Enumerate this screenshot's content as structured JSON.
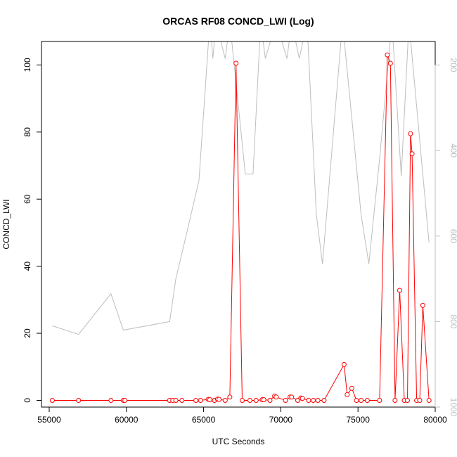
{
  "chart_data": {
    "type": "line",
    "title": "ORCAS RF08 CONCD_LWI (Log)",
    "xlabel": "UTC Seconds",
    "ylabel": "CONCD_LWI",
    "xlim": [
      54500,
      80000
    ],
    "ylim": [
      -2,
      107
    ],
    "y2lim": [
      1000,
      145
    ],
    "xticks": [
      "55000",
      "60000",
      "65000",
      "70000",
      "75000",
      "80000"
    ],
    "yticks": [
      "0",
      "20",
      "40",
      "60",
      "80",
      "100"
    ],
    "y2ticks": [
      "200",
      "400",
      "600",
      "800",
      "1000"
    ],
    "colors": {
      "primary": "#ff0000",
      "secondary": "#bebebe",
      "axis": "#000000"
    },
    "series": [
      {
        "values": [
          [
            55200,
            0
          ],
          [
            56900,
            0
          ],
          [
            59000,
            0
          ],
          [
            59800,
            0
          ],
          [
            59900,
            0
          ],
          [
            62800,
            0
          ],
          [
            63000,
            0
          ],
          [
            63200,
            0
          ],
          [
            63600,
            0
          ],
          [
            64500,
            0
          ],
          [
            64800,
            0
          ],
          [
            65300,
            0.3
          ],
          [
            65400,
            0.2
          ],
          [
            65700,
            0
          ],
          [
            65900,
            0.4
          ],
          [
            66000,
            0.3
          ],
          [
            66400,
            0
          ],
          [
            66700,
            1
          ],
          [
            67100,
            100.5
          ],
          [
            67500,
            0
          ],
          [
            68000,
            0
          ],
          [
            68400,
            0
          ],
          [
            68800,
            0.2
          ],
          [
            68900,
            0.2
          ],
          [
            69300,
            0
          ],
          [
            69600,
            1.3
          ],
          [
            69700,
            1
          ],
          [
            70300,
            0
          ],
          [
            70600,
            1
          ],
          [
            70700,
            1
          ],
          [
            71100,
            0
          ],
          [
            71300,
            0.7
          ],
          [
            71400,
            0.6
          ],
          [
            71800,
            0
          ],
          [
            72100,
            0
          ],
          [
            72400,
            0
          ],
          [
            72800,
            0
          ],
          [
            74100,
            10.7
          ],
          [
            74300,
            1.7
          ],
          [
            74600,
            3.6
          ],
          [
            74900,
            0
          ],
          [
            75200,
            0
          ],
          [
            75600,
            0
          ],
          [
            76400,
            0
          ],
          [
            76900,
            103
          ],
          [
            77100,
            100.5
          ],
          [
            77400,
            0
          ],
          [
            77700,
            32.8
          ],
          [
            78000,
            0
          ],
          [
            78200,
            0
          ],
          [
            78400,
            79.5
          ],
          [
            78500,
            73.5
          ],
          [
            78800,
            0
          ],
          [
            79000,
            0
          ],
          [
            79200,
            28.3
          ],
          [
            79600,
            0
          ]
        ]
      },
      {
        "axis": "right",
        "values": [
          [
            55200,
            810
          ],
          [
            56900,
            830
          ],
          [
            59000,
            735
          ],
          [
            59800,
            820
          ],
          [
            62800,
            800
          ],
          [
            63200,
            700
          ],
          [
            63600,
            640
          ],
          [
            64700,
            470
          ],
          [
            65400,
            100
          ],
          [
            65600,
            185
          ],
          [
            65800,
            100
          ],
          [
            66400,
            185
          ],
          [
            66700,
            100
          ],
          [
            67700,
            455
          ],
          [
            68200,
            455
          ],
          [
            68700,
            100
          ],
          [
            69000,
            185
          ],
          [
            69700,
            100
          ],
          [
            70400,
            185
          ],
          [
            70700,
            100
          ],
          [
            71200,
            185
          ],
          [
            71700,
            100
          ],
          [
            72300,
            550
          ],
          [
            72700,
            665
          ],
          [
            74000,
            100
          ],
          [
            75200,
            550
          ],
          [
            75700,
            665
          ],
          [
            76400,
            420
          ],
          [
            77200,
            100
          ],
          [
            77800,
            460
          ],
          [
            78300,
            100
          ],
          [
            79600,
            615
          ]
        ]
      }
    ]
  }
}
